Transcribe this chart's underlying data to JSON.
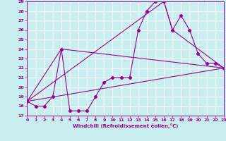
{
  "xlabel": "Windchill (Refroidissement éolien,°C)",
  "xlim": [
    0,
    23
  ],
  "ylim": [
    17,
    29
  ],
  "yticks": [
    17,
    18,
    19,
    20,
    21,
    22,
    23,
    24,
    25,
    26,
    27,
    28,
    29
  ],
  "xticks": [
    0,
    1,
    2,
    3,
    4,
    5,
    6,
    7,
    8,
    9,
    10,
    11,
    12,
    13,
    14,
    15,
    16,
    17,
    18,
    19,
    20,
    21,
    22,
    23
  ],
  "bg_color": "#c8eef0",
  "grid_color": "#b0d8dc",
  "line_color": "#990099",
  "line1_x": [
    0,
    1,
    2,
    3,
    4,
    5,
    6,
    7,
    8,
    9,
    10,
    11,
    12,
    13,
    14,
    15,
    16,
    17,
    18,
    19,
    20,
    21,
    22,
    23
  ],
  "line1_y": [
    18.5,
    18.0,
    18.0,
    19.0,
    24.0,
    17.5,
    17.5,
    17.5,
    19.0,
    20.5,
    21.0,
    21.0,
    21.0,
    26.0,
    28.0,
    29.0,
    29.0,
    26.0,
    27.5,
    26.0,
    23.5,
    22.5,
    22.5,
    22.0
  ],
  "line2_x": [
    0,
    23
  ],
  "line2_y": [
    18.5,
    22.0
  ],
  "line3_x": [
    0,
    4,
    23
  ],
  "line3_y": [
    18.5,
    24.0,
    22.0
  ],
  "line4_x": [
    0,
    16,
    17,
    23
  ],
  "line4_y": [
    18.5,
    29.0,
    26.0,
    22.0
  ]
}
